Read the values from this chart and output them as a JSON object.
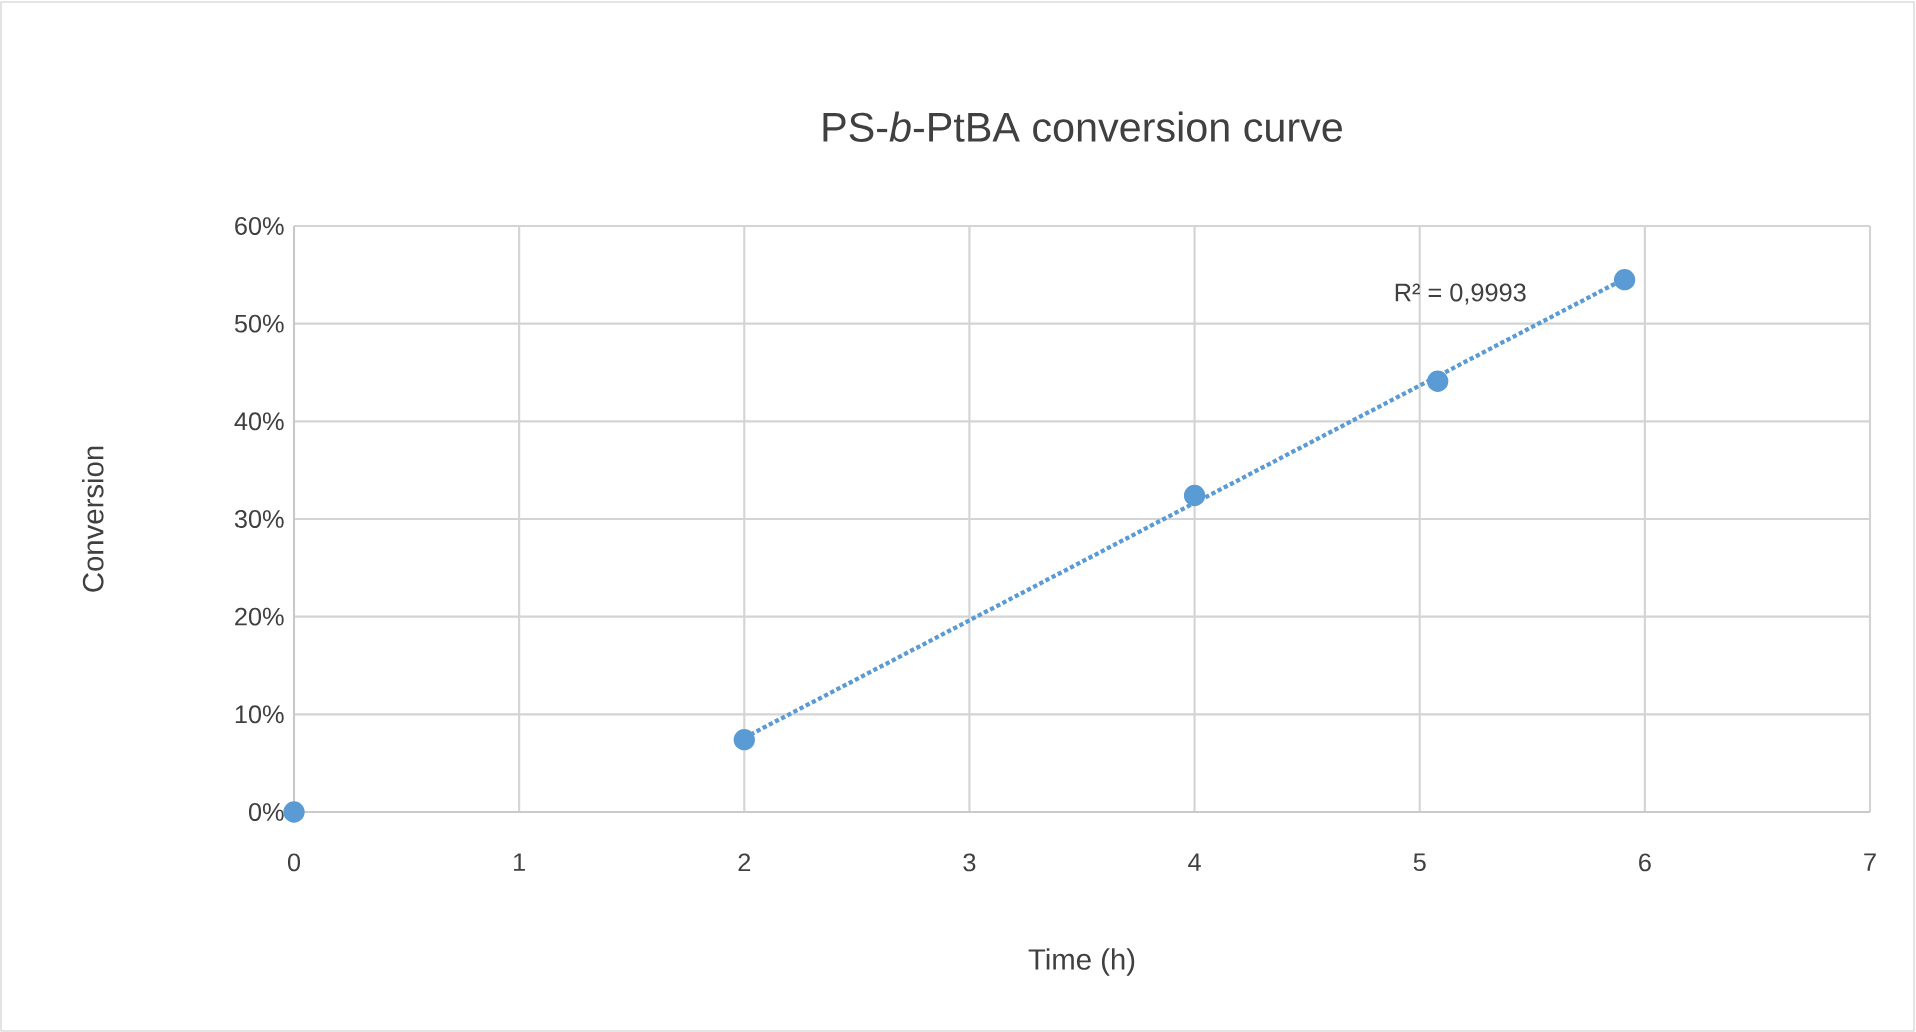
{
  "chart_data": {
    "type": "scatter",
    "title": "PS-*b*-PtBA conversion curve",
    "xlabel": "Time (h)",
    "ylabel": "Conversion",
    "series": [
      {
        "color": "#5b9bd5",
        "x": [
          0,
          2,
          4,
          5.08,
          5.91
        ],
        "values": [
          0,
          7.4,
          32.4,
          44.1,
          54.5
        ],
        "marker": "circle"
      },
      {
        "type": "line",
        "color": "#5b9bd5",
        "x": [
          2,
          5.91
        ],
        "values": [
          7.6,
          54.6
        ],
        "line_style": "dotted",
        "marker": "none"
      }
    ],
    "xlim": [
      0,
      7
    ],
    "xticks": [
      0,
      1,
      2,
      3,
      4,
      5,
      6,
      7
    ],
    "ylim": [
      0,
      60
    ],
    "yticks": [
      {
        "value": 0,
        "label": "0%"
      },
      {
        "value": 10,
        "label": "10%"
      },
      {
        "value": 20,
        "label": "20%"
      },
      {
        "value": 30,
        "label": "30%"
      },
      {
        "value": 40,
        "label": "40%"
      },
      {
        "value": 50,
        "label": "50%"
      },
      {
        "value": 60,
        "label": "60%"
      }
    ],
    "grid": true,
    "annotations": [
      "R² = 0,9993"
    ]
  }
}
